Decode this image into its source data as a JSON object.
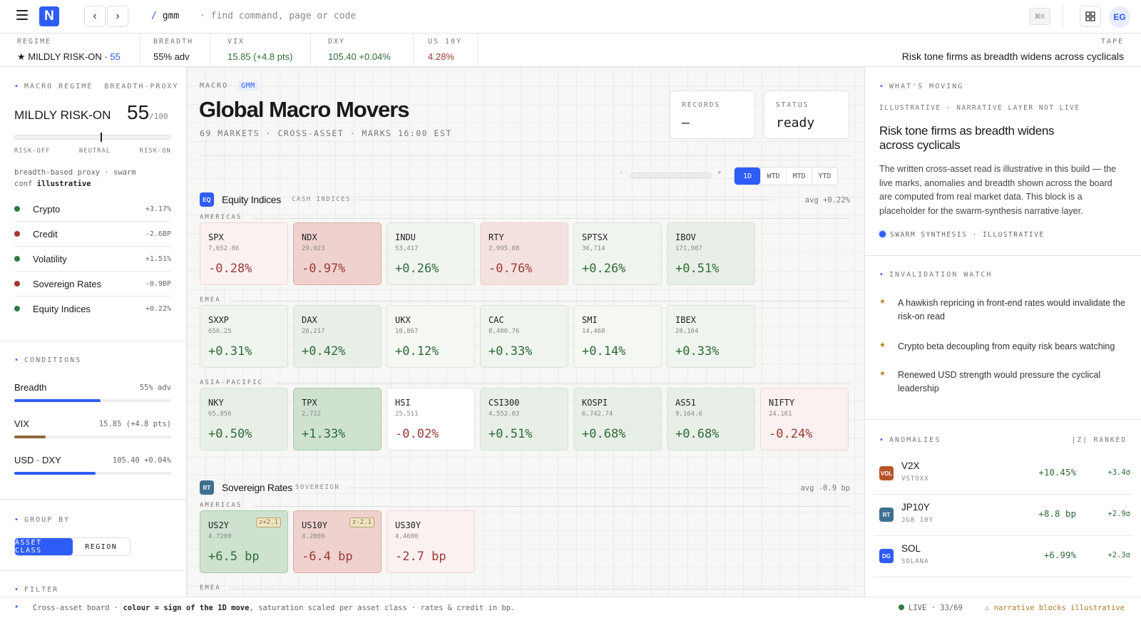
{
  "topbar": {
    "logo": "N",
    "crumb": "gmm",
    "search_placeholder": "· find command, page or code",
    "kbd": "⌘K",
    "avatar": "EG"
  },
  "stats": [
    {
      "label": "REGIME",
      "prefix": "★ MILDLY RISK-ON · ",
      "value": "55",
      "color": "#2d5cf6"
    },
    {
      "label": "BREADTH",
      "value": "55% adv"
    },
    {
      "label": "VIX",
      "value": "15.85 (+4.8 pts)",
      "color": "#2f6b3a"
    },
    {
      "label": "DXY",
      "value": "105.40 +0.04%",
      "color": "#2f6b3a"
    },
    {
      "label": "US 10Y",
      "value": "4.28%",
      "color": "#9a3a36"
    }
  ],
  "tape": {
    "label": "TAPE",
    "text": "Risk tone firms as breadth widens across cyclicals"
  },
  "left": {
    "regime_header": "MACRO REGIME",
    "regime_tag": "BREADTH-PROXY",
    "regime_label": "MILDLY RISK-ON",
    "score": "55",
    "score_max": "/100",
    "score_fraction": 0.55,
    "gauge_labels": [
      "RISK-OFF",
      "NEUTRAL",
      "RISK-ON"
    ],
    "proxy_note": "breadth-based proxy · swarm",
    "conf_label": "conf",
    "conf_value": "illustrative",
    "groups": [
      {
        "name": "Crypto",
        "value": "+3.17%",
        "color": "#2f7a3f"
      },
      {
        "name": "Credit",
        "value": "-2.6BP",
        "color": "#a3352f"
      },
      {
        "name": "Volatility",
        "value": "+1.51%",
        "color": "#2f7a3f"
      },
      {
        "name": "Sovereign Rates",
        "value": "-0.9BP",
        "color": "#a3352f"
      },
      {
        "name": "Equity Indices",
        "value": "+0.22%",
        "color": "#2f7a3f"
      }
    ],
    "conditions_header": "CONDITIONS",
    "conditions": [
      {
        "name": "Breadth",
        "value": "55% adv",
        "fill": 0.55,
        "color": "#2d5cf6"
      },
      {
        "name": "VIX",
        "value": "15.85 (+4.8 pts)",
        "fill": 0.2,
        "color": "#8a6a3b"
      },
      {
        "name": "USD · DXY",
        "value": "105.40 +0.04%",
        "fill": 0.52,
        "color": "#2d5cf6"
      }
    ],
    "group_by_header": "GROUP BY",
    "group_by_options": [
      "ASSET CLASS",
      "REGION"
    ],
    "filter_header": "FILTER"
  },
  "main": {
    "eyebrow": "MACRO",
    "eyebrow_tag": "GMM",
    "title": "Global Macro Movers",
    "subtitle": "69 MARKETS · CROSS-ASSET · MARKS 16:00 EST",
    "records_label": "RECORDS",
    "records_value": "—",
    "status_label": "STATUS",
    "status_value": "ready",
    "zoom_minus": "-",
    "zoom_plus": "+",
    "periods": [
      "1D",
      "WTD",
      "MTD",
      "YTD"
    ]
  },
  "sections": [
    {
      "badge": "EQ",
      "badge_color": "#2d5cf6",
      "name": "Equity Indices",
      "tag": "CASH INDICES",
      "avg": "avg +0.22%",
      "regions": [
        {
          "name": "AMERICAS",
          "tiles": [
            {
              "sym": "SPX",
              "px": "7,652.86",
              "chg": "-0.28%",
              "tone": "neg1"
            },
            {
              "sym": "NDX",
              "px": "29,023",
              "chg": "-0.97%",
              "tone": "neg3"
            },
            {
              "sym": "INDU",
              "px": "53,417",
              "chg": "+0.26%",
              "tone": "pos1"
            },
            {
              "sym": "RTY",
              "px": "2,995.08",
              "chg": "-0.76%",
              "tone": "neg2"
            },
            {
              "sym": "SPTSX",
              "px": "36,714",
              "chg": "+0.26%",
              "tone": "pos1"
            },
            {
              "sym": "IBOV",
              "px": "171,907",
              "chg": "+0.51%",
              "tone": "pos2"
            }
          ]
        },
        {
          "name": "EMEA",
          "tiles": [
            {
              "sym": "SXXP",
              "px": "656.25",
              "chg": "+0.31%",
              "tone": "pos1"
            },
            {
              "sym": "DAX",
              "px": "26,217",
              "chg": "+0.42%",
              "tone": "pos2"
            },
            {
              "sym": "UKX",
              "px": "10,867",
              "chg": "+0.12%",
              "tone": "pos0"
            },
            {
              "sym": "CAC",
              "px": "8,480.76",
              "chg": "+0.33%",
              "tone": "pos1"
            },
            {
              "sym": "SMI",
              "px": "14,468",
              "chg": "+0.14%",
              "tone": "pos0"
            },
            {
              "sym": "IBEX",
              "px": "20,164",
              "chg": "+0.33%",
              "tone": "pos1"
            }
          ]
        },
        {
          "name": "ASIA-PACIFIC",
          "tiles": [
            {
              "sym": "NKY",
              "px": "65,856",
              "chg": "+0.50%",
              "tone": "pos2"
            },
            {
              "sym": "TPX",
              "px": "2,712",
              "chg": "+1.33%",
              "tone": "pos3"
            },
            {
              "sym": "HSI",
              "px": "25,511",
              "chg": "-0.02%",
              "tone": "neutral"
            },
            {
              "sym": "CSI300",
              "px": "4,552.03",
              "chg": "+0.51%",
              "tone": "pos2"
            },
            {
              "sym": "KOSPI",
              "px": "6,742.74",
              "chg": "+0.68%",
              "tone": "pos2"
            },
            {
              "sym": "AS51",
              "px": "9,164.6",
              "chg": "+0.68%",
              "tone": "pos2"
            },
            {
              "sym": "NIFTY",
              "px": "24,161",
              "chg": "-0.24%",
              "tone": "neg1"
            }
          ]
        }
      ]
    },
    {
      "badge": "RT",
      "badge_color": "#3f6f8f",
      "name": "Sovereign Rates",
      "tag": "SOVEREIGN",
      "avg": "avg -0.9 bp",
      "regions": [
        {
          "name": "AMERICAS",
          "tiles": [
            {
              "sym": "US2Y",
              "px": "4.7200",
              "chg": "+6.5 bp",
              "tone": "pos3",
              "z": "z+2.1"
            },
            {
              "sym": "US10Y",
              "px": "4.2800",
              "chg": "-6.4 bp",
              "tone": "neg3",
              "z": "z-2.1"
            },
            {
              "sym": "US30Y",
              "px": "4.4600",
              "chg": "-2.7 bp",
              "tone": "neg1"
            }
          ]
        },
        {
          "name": "EMEA",
          "tiles": []
        }
      ]
    }
  ],
  "right": {
    "moving_header": "WHAT'S MOVING",
    "moving_note": "ILLUSTRATIVE · NARRATIVE LAYER NOT LIVE",
    "headline": "Risk tone firms as breadth widens across cyclicals",
    "body": "The written cross-asset read is illustrative in this build — the live marks, anomalies and breadth shown across the board are computed from real market data. This block is a placeholder for the swarm-synthesis narrative layer.",
    "synthesis_tag": "SWARM SYNTHESIS · ILLUSTRATIVE",
    "invalidation_header": "INVALIDATION WATCH",
    "invalidations": [
      "A hawkish repricing in front-end rates would invalidate the risk-on read",
      "Crypto beta decoupling from equity risk bears watching",
      "Renewed USD strength would pressure the cyclical leadership"
    ],
    "anomalies_header": "ANOMALIES",
    "anomalies_tag": "|Z| RANKED",
    "anomalies": [
      {
        "badge": "VOL",
        "badge_color": "#b5542a",
        "sym": "V2X",
        "name": "VSTOXX",
        "chg": "+10.45%",
        "z": "+3.4σ"
      },
      {
        "badge": "RT",
        "badge_color": "#3f6f8f",
        "sym": "JP10Y",
        "name": "JGB 10Y",
        "chg": "+8.8 bp",
        "z": "+2.9σ"
      },
      {
        "badge": "DG",
        "badge_color": "#2d5cf6",
        "sym": "SOL",
        "name": "SOLANA",
        "chg": "+6.99%",
        "z": "+2.3σ"
      }
    ]
  },
  "footer": {
    "pre": "Cross-asset board · ",
    "bold": "colour = sign of the 1D move",
    "post": ", saturation scaled per asset class · rates & credit in bp.",
    "live": "LIVE · 33/69",
    "warn": "⚠ narrative blocks illustrative"
  }
}
